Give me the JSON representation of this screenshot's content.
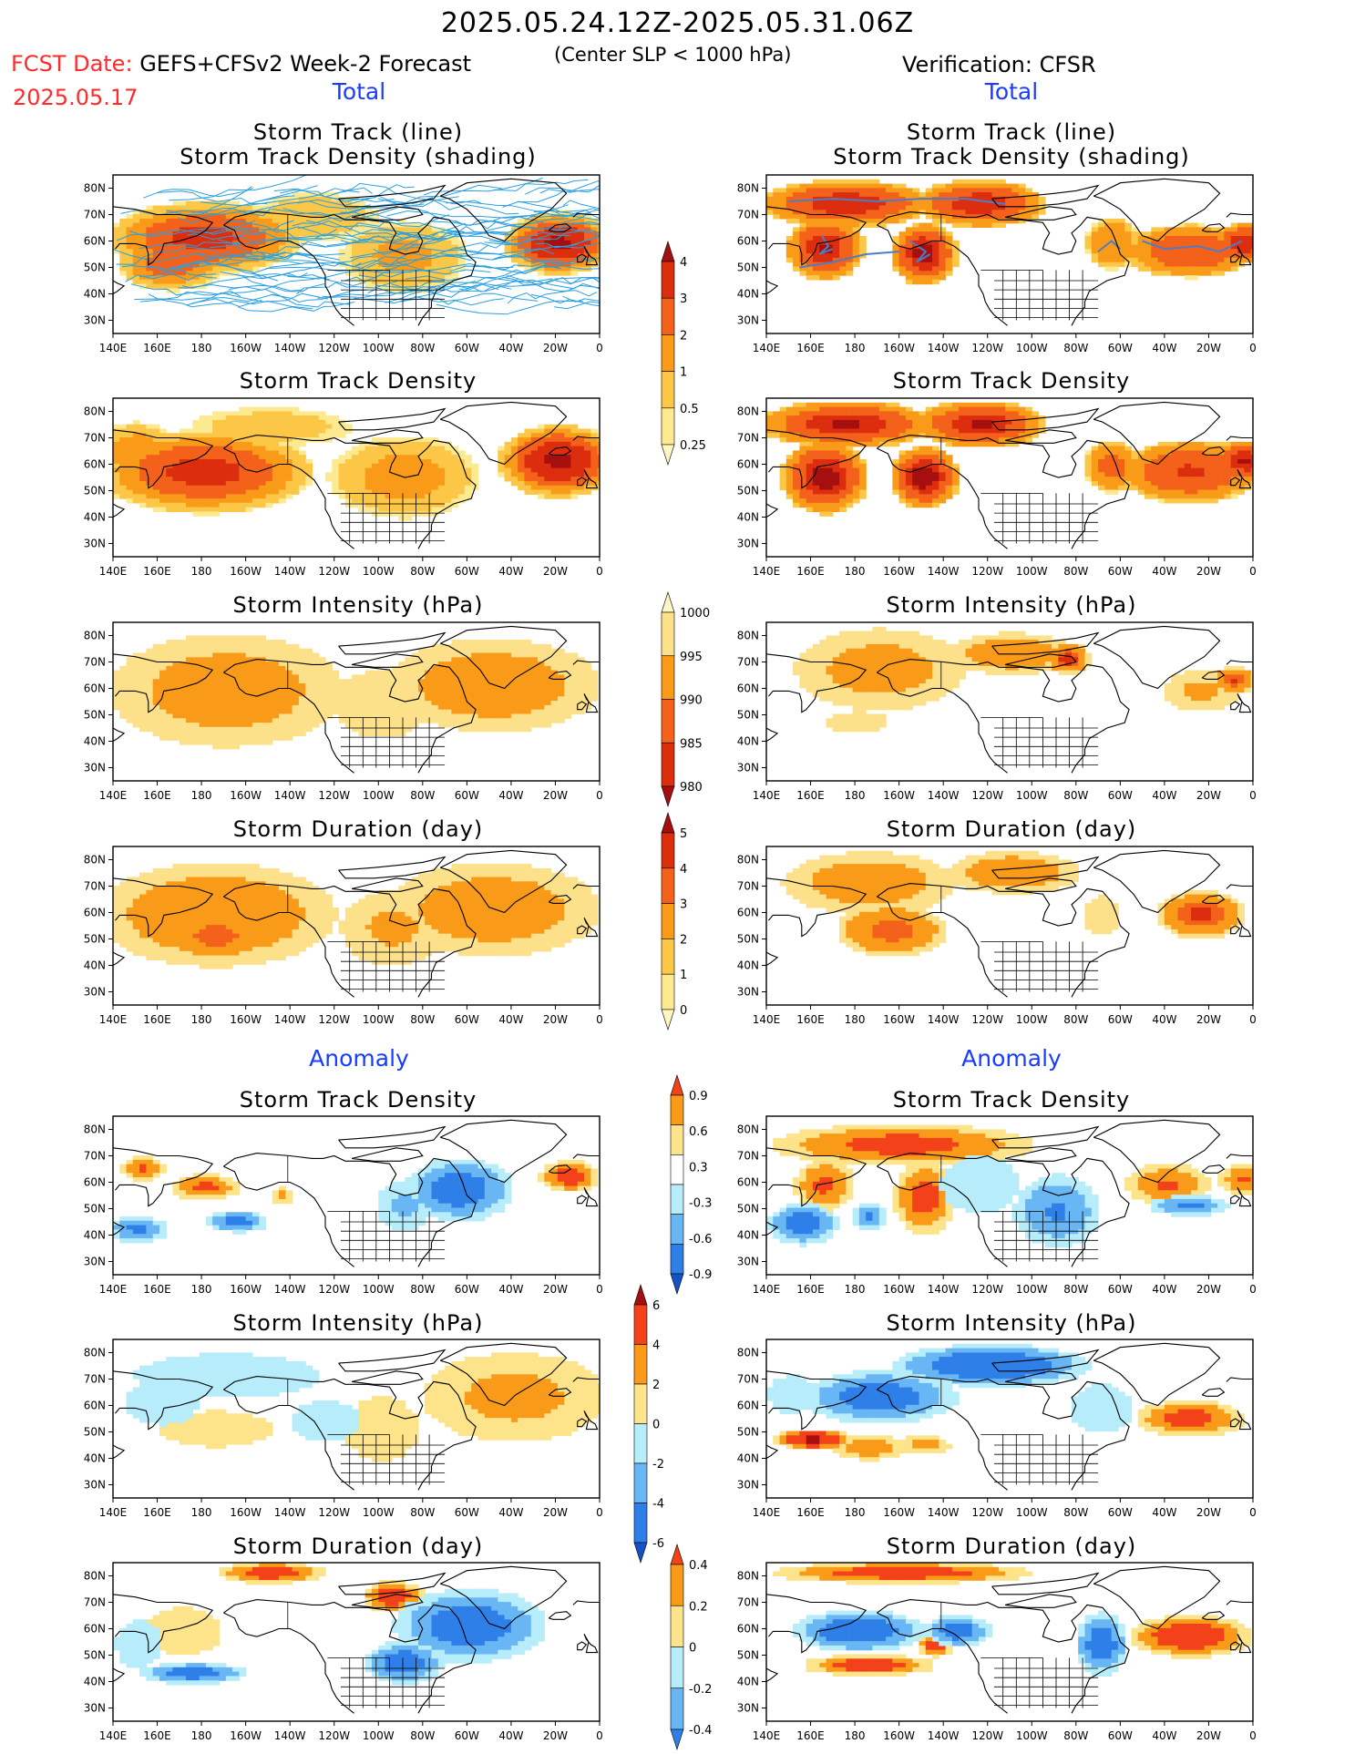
{
  "header": {
    "date_range": "2025.05.24.12Z-2025.05.31.06Z",
    "fcst_label": "FCST Date:",
    "forecast_title": "GEFS+CFSv2 Week-2 Forecast",
    "criterion": "(Center SLP < 1000 hPa)",
    "verification": "Verification: CFSR",
    "fcst_date": "2025.05.17"
  },
  "sections": {
    "total_left": "Total",
    "total_right": "Total",
    "anomaly_left": "Anomaly",
    "anomaly_right": "Anomaly"
  },
  "panel_titles": {
    "track_line": "Storm Track (line)",
    "track_shading": "Storm Track Density (shading)",
    "density": "Storm Track Density",
    "intensity": "Storm Intensity (hPa)",
    "duration": "Storm Duration (day)"
  },
  "map_axes": {
    "lon_ticks": [
      "140E",
      "160E",
      "180",
      "160W",
      "140W",
      "120W",
      "100W",
      "80W",
      "60W",
      "40W",
      "20W",
      "0"
    ],
    "lat_ticks": [
      "80N",
      "70N",
      "60N",
      "50N",
      "40N",
      "30N"
    ]
  },
  "colorbars": {
    "total_density": {
      "labels": [
        "4",
        "3",
        "2",
        "1",
        "0.5",
        "0.25"
      ],
      "colors": [
        "#a50f0f",
        "#dc2e0e",
        "#f3611a",
        "#f99b18",
        "#fcc646",
        "#fde98f",
        "#fff7c2"
      ]
    },
    "total_intensity": {
      "labels": [
        "1000",
        "995",
        "990",
        "985",
        "980"
      ],
      "colors": [
        "#fff7c2",
        "#fce08a",
        "#f99b18",
        "#f3611a",
        "#dc2e0e",
        "#a50f0f"
      ]
    },
    "total_duration": {
      "labels": [
        "5",
        "4",
        "3",
        "2",
        "1",
        "0"
      ],
      "colors": [
        "#a50f0f",
        "#dc2e0e",
        "#f3611a",
        "#f99b18",
        "#fcc646",
        "#fde98f",
        "#fff7c2"
      ]
    },
    "anom_density": {
      "labels": [
        "0.9",
        "0.6",
        "0.3",
        "-0.3",
        "-0.6",
        "-0.9"
      ],
      "colors": [
        "#f3411a",
        "#f99b18",
        "#fde38a",
        "#ffffff",
        "#b7ecfb",
        "#68b6f3",
        "#2f7fe8",
        "#1452c8"
      ]
    },
    "anom_intensity": {
      "labels": [
        "6",
        "4",
        "2",
        "0",
        "-2",
        "-4",
        "-6"
      ],
      "colors": [
        "#a50f0f",
        "#f3411a",
        "#f99b18",
        "#fde38a",
        "#b7ecfb",
        "#68b6f3",
        "#2f7fe8",
        "#1452c8"
      ]
    },
    "anom_duration": {
      "labels": [
        "0.4",
        "0.2",
        "0",
        "-0.2",
        "-0.4"
      ],
      "colors": [
        "#f3411a",
        "#f99b18",
        "#fde38a",
        "#b7ecfb",
        "#68b6f3",
        "#2f7fe8"
      ]
    }
  },
  "chart_data": {
    "type": "heatmap",
    "map_extent": {
      "lon": [
        "140E",
        "0"
      ],
      "lat": [
        "25N",
        "85N"
      ]
    },
    "panels": [
      {
        "id": "fcst-track",
        "column": "GEFS+CFSv2 Week-2 Forecast",
        "title": "Storm Track (line) / Storm Track Density (shading)",
        "shading_max_region": "20W 62N and 170W 55N"
      },
      {
        "id": "obs-track",
        "column": "Verification: CFSR",
        "title": "Storm Track (line) / Storm Track Density (shading)"
      },
      {
        "id": "fcst-density",
        "title": "Storm Track Density",
        "approx_max": 3
      },
      {
        "id": "obs-density",
        "title": "Storm Track Density",
        "approx_max": 4
      },
      {
        "id": "fcst-intensity",
        "title": "Storm Intensity (hPa)"
      },
      {
        "id": "obs-intensity",
        "title": "Storm Intensity (hPa)"
      },
      {
        "id": "fcst-duration",
        "title": "Storm Duration (day)"
      },
      {
        "id": "obs-duration",
        "title": "Storm Duration (day)"
      },
      {
        "id": "fcst-anom-density",
        "title": "Storm Track Density (Anomaly)"
      },
      {
        "id": "obs-anom-density",
        "title": "Storm Track Density (Anomaly)"
      },
      {
        "id": "fcst-anom-intensity",
        "title": "Storm Intensity (hPa) (Anomaly)"
      },
      {
        "id": "obs-anom-intensity",
        "title": "Storm Intensity (hPa) (Anomaly)"
      },
      {
        "id": "fcst-anom-duration",
        "title": "Storm Duration (day) (Anomaly)"
      },
      {
        "id": "obs-anom-duration",
        "title": "Storm Duration (day) (Anomaly)"
      }
    ]
  }
}
